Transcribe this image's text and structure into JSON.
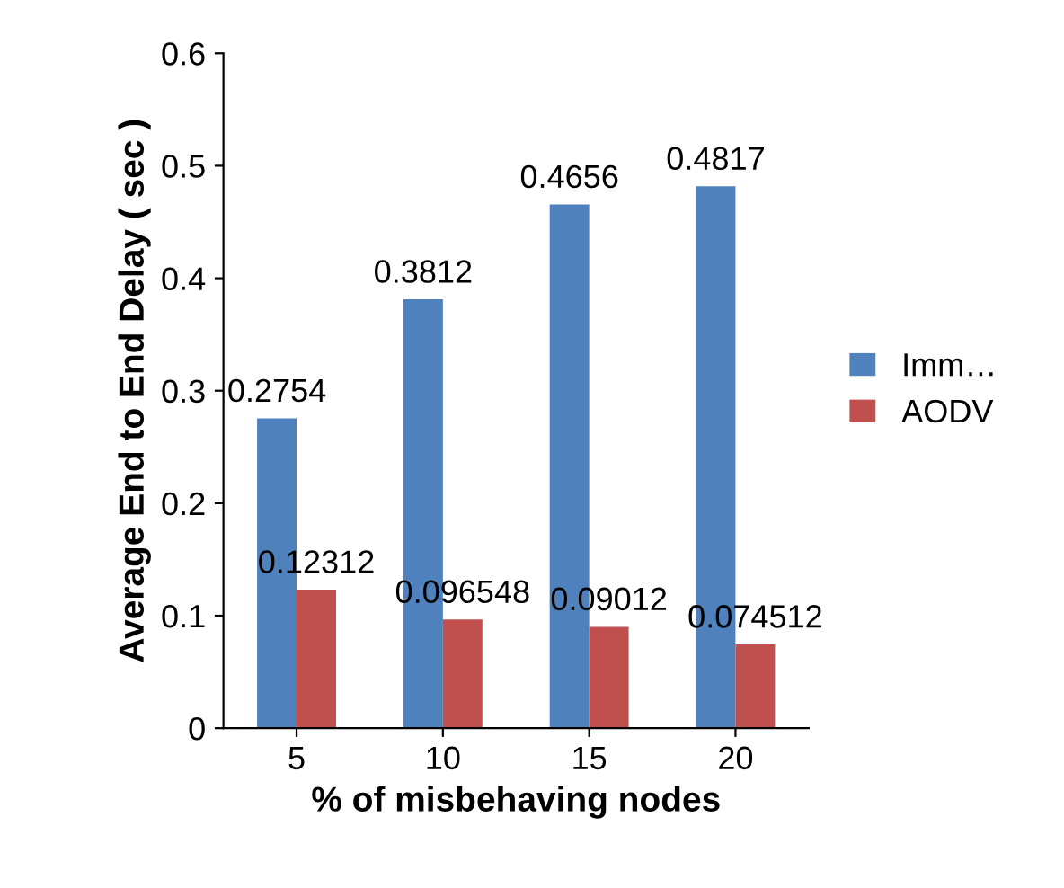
{
  "chart_data": {
    "type": "bar",
    "xlabel": "% of misbehaving nodes",
    "ylabel": "Average End to End Delay ( sec )",
    "categories": [
      "5",
      "10",
      "15",
      "20"
    ],
    "series": [
      {
        "name": "Imm…",
        "color": "#4f81bd",
        "values": [
          0.2754,
          0.3812,
          0.4656,
          0.4817
        ]
      },
      {
        "name": "AODV",
        "color": "#c0504d",
        "values": [
          0.12312,
          0.096548,
          0.09012,
          0.074512
        ]
      }
    ],
    "ylim": [
      0,
      0.6
    ],
    "yticks": [
      0,
      0.1,
      0.2,
      0.3,
      0.4,
      0.5,
      0.6
    ],
    "data_labels": true,
    "grid": false,
    "legend": "right"
  }
}
